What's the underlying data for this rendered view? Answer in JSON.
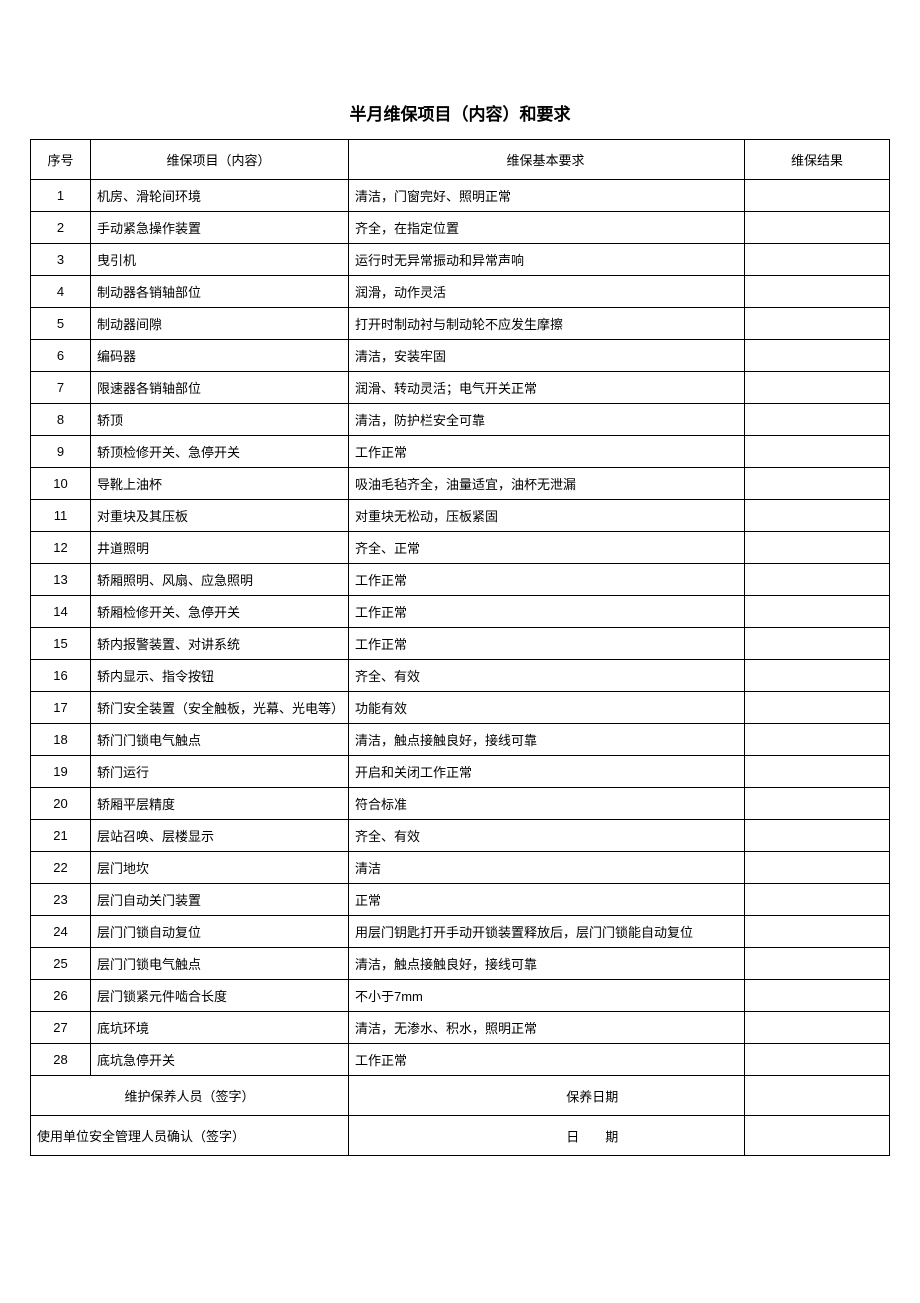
{
  "title": "半月维保项目（内容）和要求",
  "headers": {
    "seq": "序号",
    "item": "维保项目（内容）",
    "req": "维保基本要求",
    "result": "维保结果"
  },
  "rows": [
    {
      "seq": "1",
      "item": "机房、滑轮间环境",
      "req": "清洁，门窗完好、照明正常"
    },
    {
      "seq": "2",
      "item": "手动紧急操作装置",
      "req": "齐全，在指定位置"
    },
    {
      "seq": "3",
      "item": "曳引机",
      "req": "运行时无异常振动和异常声响"
    },
    {
      "seq": "4",
      "item": "制动器各销轴部位",
      "req": "润滑，动作灵活"
    },
    {
      "seq": "5",
      "item": "制动器间隙",
      "req": "打开时制动衬与制动轮不应发生摩擦"
    },
    {
      "seq": "6",
      "item": "编码器",
      "req": "清洁，安装牢固"
    },
    {
      "seq": "7",
      "item": "限速器各销轴部位",
      "req": "润滑、转动灵活；电气开关正常"
    },
    {
      "seq": "8",
      "item": "轿顶",
      "req": "清洁，防护栏安全可靠"
    },
    {
      "seq": "9",
      "item": "轿顶检修开关、急停开关",
      "req": "工作正常"
    },
    {
      "seq": "10",
      "item": "导靴上油杯",
      "req": "吸油毛毡齐全，油量适宜，油杯无泄漏"
    },
    {
      "seq": "11",
      "item": "对重块及其压板",
      "req": "对重块无松动，压板紧固"
    },
    {
      "seq": "12",
      "item": "井道照明",
      "req": "齐全、正常"
    },
    {
      "seq": "13",
      "item": "轿厢照明、风扇、应急照明",
      "req": "工作正常"
    },
    {
      "seq": "14",
      "item": "轿厢检修开关、急停开关",
      "req": "工作正常"
    },
    {
      "seq": "15",
      "item": "轿内报警装置、对讲系统",
      "req": "工作正常"
    },
    {
      "seq": "16",
      "item": "轿内显示、指令按钮",
      "req": "齐全、有效"
    },
    {
      "seq": "17",
      "item": "轿门安全装置（安全触板，光幕、光电等）",
      "req": "功能有效"
    },
    {
      "seq": "18",
      "item": "轿门门锁电气触点",
      "req": "清洁，触点接触良好，接线可靠"
    },
    {
      "seq": "19",
      "item": "轿门运行",
      "req": "开启和关闭工作正常"
    },
    {
      "seq": "20",
      "item": "轿厢平层精度",
      "req": "符合标准"
    },
    {
      "seq": "21",
      "item": "层站召唤、层楼显示",
      "req": "齐全、有效"
    },
    {
      "seq": "22",
      "item": "层门地坎",
      "req": "清洁"
    },
    {
      "seq": "23",
      "item": "层门自动关门装置",
      "req": "正常"
    },
    {
      "seq": "24",
      "item": "层门门锁自动复位",
      "req": "用层门钥匙打开手动开锁装置释放后，层门门锁能自动复位"
    },
    {
      "seq": "25",
      "item": "层门门锁电气触点",
      "req": "清洁，触点接触良好，接线可靠"
    },
    {
      "seq": "26",
      "item": "层门锁紧元件啮合长度",
      "req": "不小于7mm"
    },
    {
      "seq": "27",
      "item": "底坑环境",
      "req": "清洁，无渗水、积水，照明正常"
    },
    {
      "seq": "28",
      "item": "底坑急停开关",
      "req": "工作正常"
    }
  ],
  "footer": {
    "maintainer_label": "维护保养人员（签字）",
    "maint_date_label": "保养日期",
    "user_confirm_label": "使用单位安全管理人员确认（签字）",
    "date_label": "日　　期"
  }
}
